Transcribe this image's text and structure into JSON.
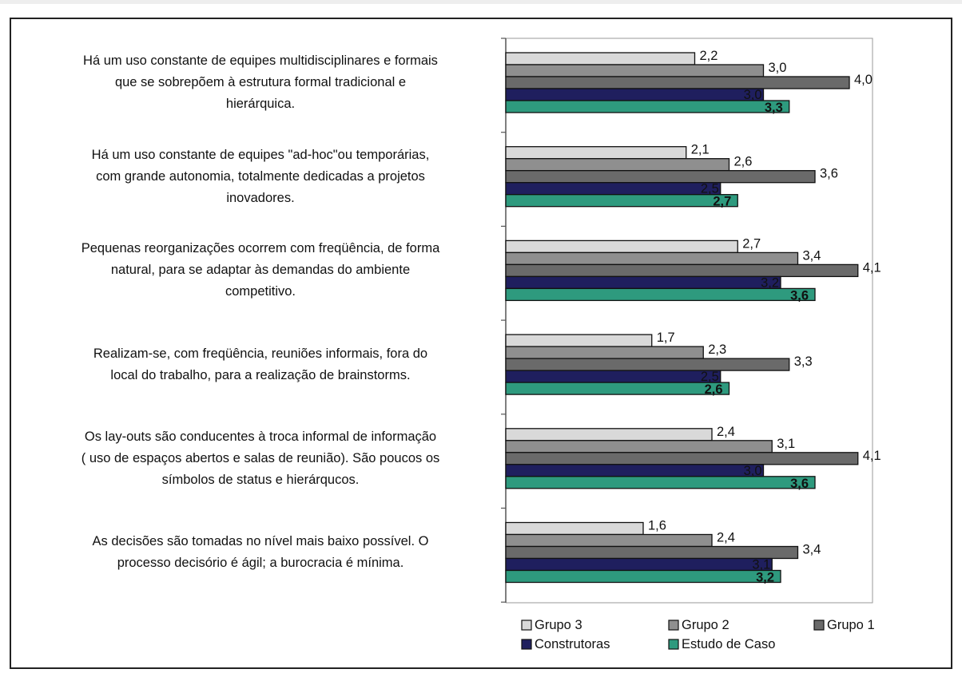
{
  "chart_data": {
    "type": "bar",
    "orientation": "horizontal",
    "title": "",
    "xlabel": "",
    "ylabel": "",
    "xlim": [
      0,
      5
    ],
    "grid": false,
    "legend_position": "bottom",
    "categories": [
      "Há um uso constante de equipes multidisciplinares e formais que se sobrepõem à estrutura formal tradicional e hierárquica.",
      "Há um uso constante de equipes \"ad-hoc\"ou temporárias, com grande autonomia, totalmente dedicadas a projetos inovadores.",
      "Pequenas reorganizações ocorrem com freqüência, de forma natural, para se adaptar às demandas do ambiente competitivo.",
      "Realizam-se, com freqüência, reuniões informais, fora do local do trabalho, para a realização de brainstorms.",
      "Os lay-outs são conducentes à troca informal de informação ( uso de espaços abertos e salas de reunião). São poucos os símbolos de status e hierárqucos.",
      "As decisões são tomadas no nível mais baixo possível. O processo decisório é ágil; a burocracia é mínima."
    ],
    "category_lines": [
      [
        "Há um uso constante de equipes multidisciplinares e formais",
        "que se sobrepõem à estrutura formal tradicional e",
        "hierárquica."
      ],
      [
        "Há um uso constante de equipes \"ad-hoc\"ou temporárias,",
        "com grande autonomia, totalmente dedicadas a projetos",
        "inovadores."
      ],
      [
        "Pequenas reorganizações ocorrem com freqüência, de forma",
        "natural, para se adaptar às demandas do ambiente",
        "competitivo."
      ],
      [
        "Realizam-se, com freqüência, reuniões informais, fora do",
        "local do trabalho, para a realização de brainstorms."
      ],
      [
        "Os lay-outs são conducentes à troca informal de informação",
        "( uso de espaços abertos e salas de reunião). São poucos os",
        "símbolos de status e hierárqucos."
      ],
      [
        "As decisões são tomadas no nível mais baixo possível. O",
        "processo decisório é ágil; a burocracia é mínima."
      ]
    ],
    "series": [
      {
        "name": "Grupo 3",
        "color": "#d9d9d9",
        "values": [
          2.2,
          2.1,
          2.7,
          1.7,
          2.4,
          1.6
        ],
        "labels": [
          "2,2",
          "2,1",
          "2,7",
          "1,7",
          "2,4",
          "1,6"
        ]
      },
      {
        "name": "Grupo 2",
        "color": "#8f8f8f",
        "values": [
          3.0,
          2.6,
          3.4,
          2.3,
          3.1,
          2.4
        ],
        "labels": [
          "3,0",
          "2,6",
          "3,4",
          "2,3",
          "3,1",
          "2,4"
        ]
      },
      {
        "name": "Grupo 1",
        "color": "#6a6a6a",
        "values": [
          4.0,
          3.6,
          4.1,
          3.3,
          4.1,
          3.4
        ],
        "labels": [
          "4,0",
          "3,6",
          "4,1",
          "3,3",
          "4,1",
          "3,4"
        ]
      },
      {
        "name": "Construtoras",
        "color": "#1f1f5e",
        "values": [
          3.0,
          2.5,
          3.2,
          2.5,
          3.0,
          3.1
        ],
        "labels": [
          "3,0",
          "2,5",
          "3,2",
          "2,5",
          "3,0",
          "3,1"
        ]
      },
      {
        "name": "Estudo de Caso",
        "color": "#2e9a7e",
        "values": [
          3.3,
          2.7,
          3.6,
          2.6,
          3.6,
          3.2
        ],
        "labels": [
          "3,3",
          "2,7",
          "3,6",
          "2,6",
          "3,6",
          "3,2"
        ]
      }
    ],
    "legend_rows": [
      [
        "Grupo 3",
        "Grupo 2",
        "Grupo 1"
      ],
      [
        "Construtoras",
        "Estudo de Caso"
      ]
    ]
  }
}
